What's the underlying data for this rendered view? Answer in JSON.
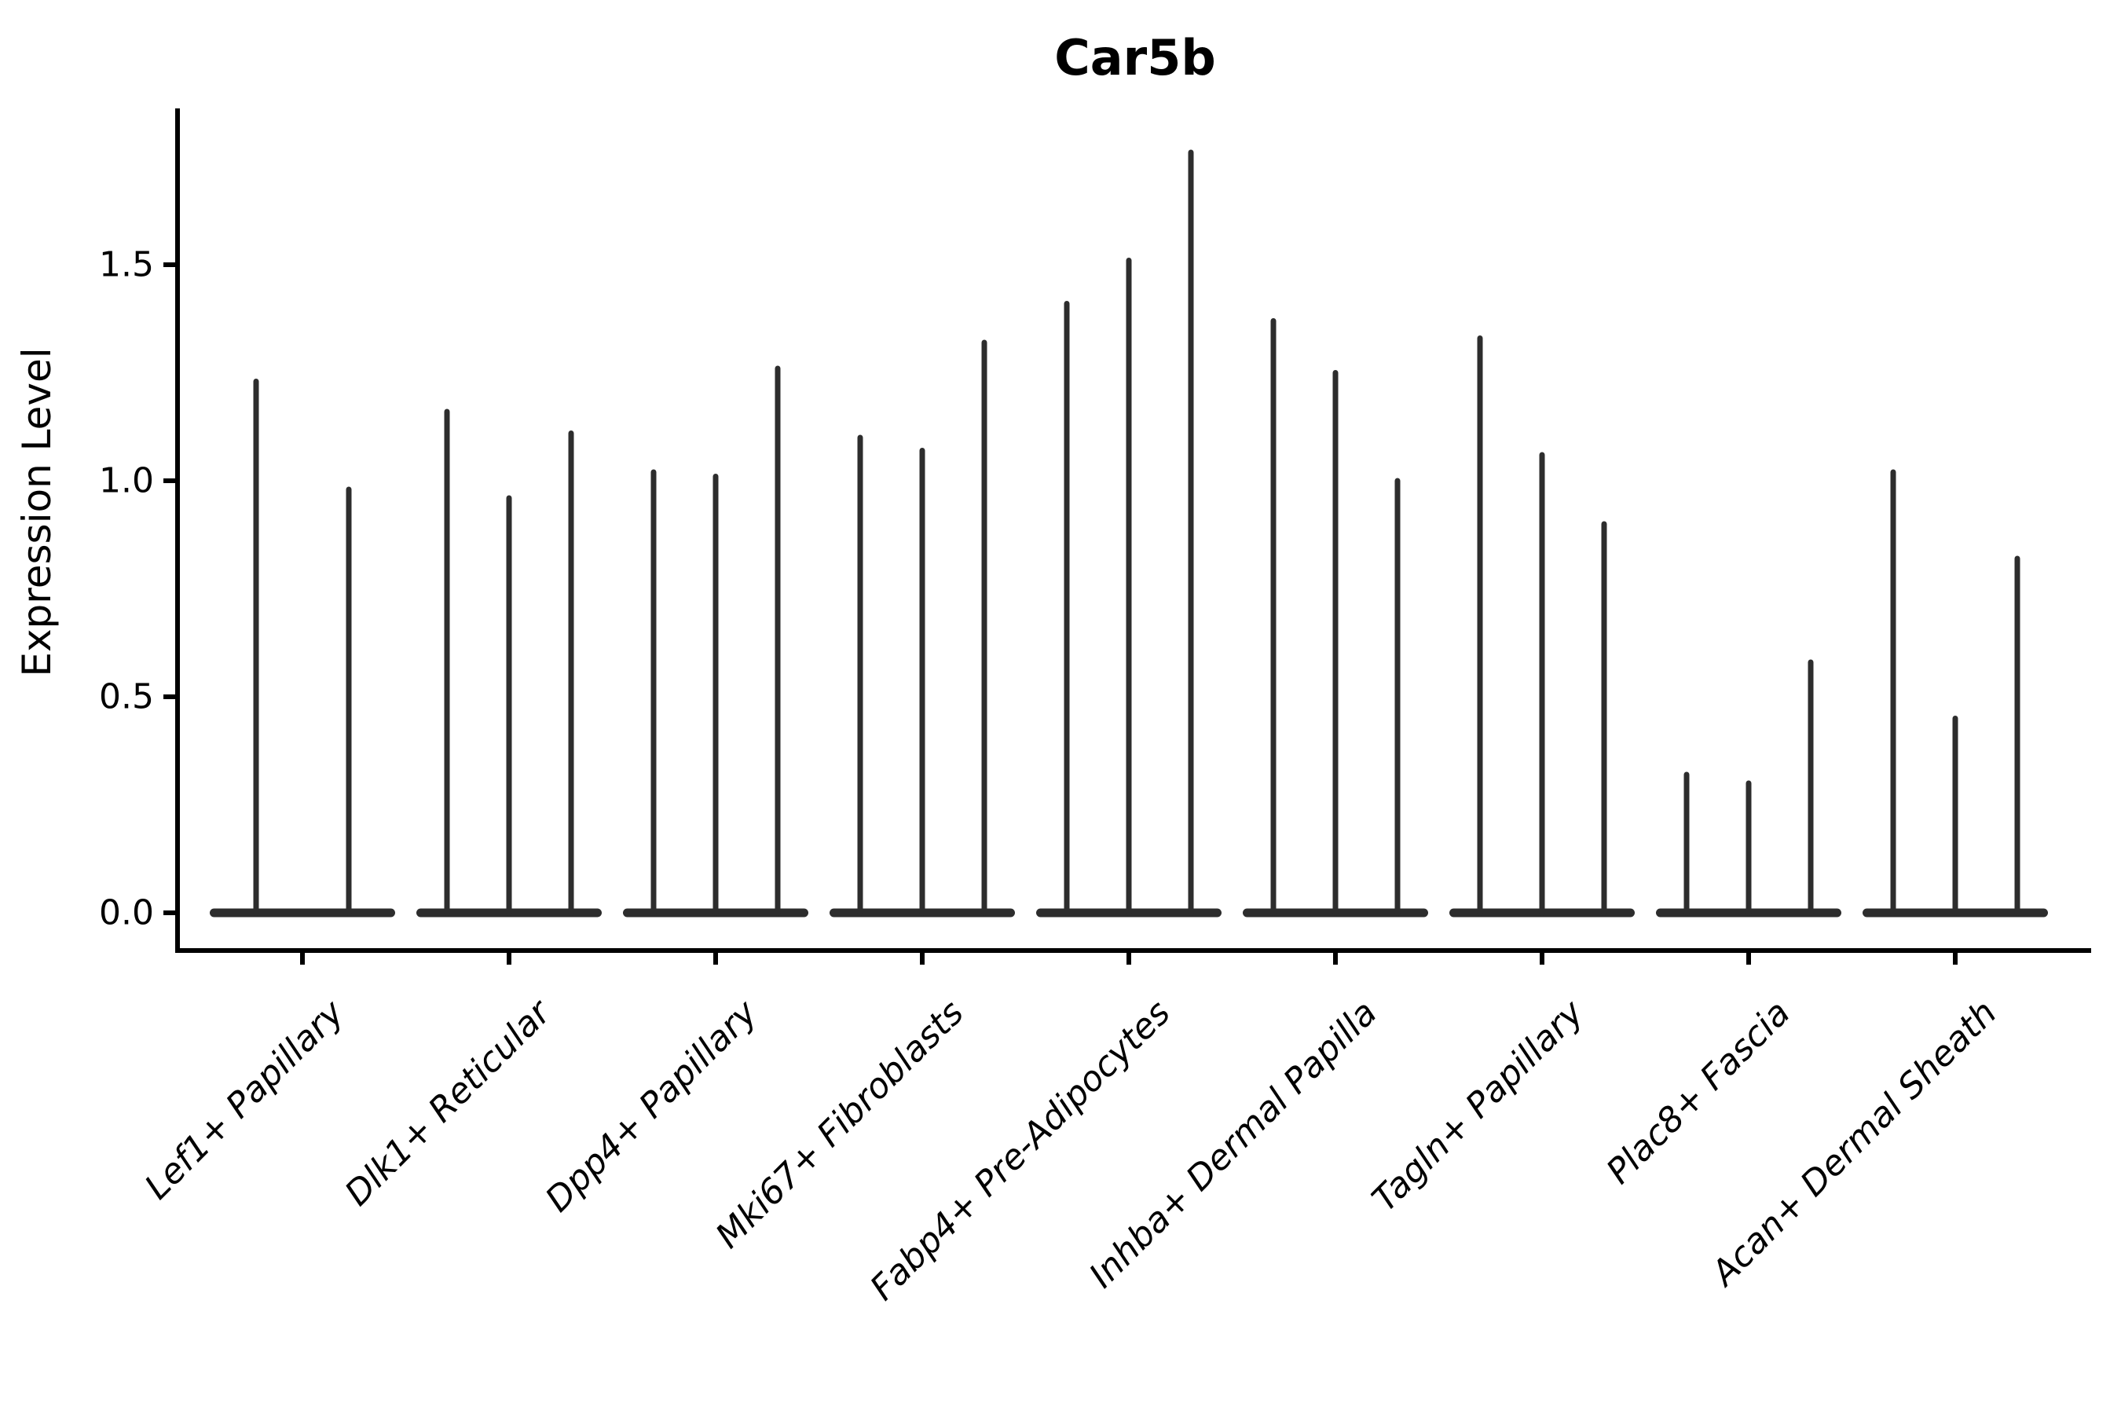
{
  "chart_data": {
    "type": "violin",
    "title": "Car5b",
    "ylabel": "Expression Level",
    "xlabel": "",
    "ytick_labels": [
      "0.0",
      "0.5",
      "1.0",
      "1.5"
    ],
    "ytick_values": [
      0.0,
      0.5,
      1.0,
      1.5
    ],
    "ylim": [
      0.0,
      1.86
    ],
    "grid": false,
    "legend": "none",
    "violin_color": "#2d2d2d",
    "axis_color": "#000000",
    "background_color": "#ffffff",
    "x_label_rotation_deg": 45,
    "description": "Each category shows a flat violin baseline at expression 0 with 2-3 thin needle violins whose tips mark the maximum expression level",
    "categories": [
      "Lef1+ Papillary",
      "Dlk1+ Reticular",
      "Dpp4+ Papillary",
      "Mki67+ Fibroblasts",
      "Fabp4+ Pre-Adipocytes",
      "Inhba+ Dermal Papilla",
      "Tagln+ Papillary",
      "Plac8+ Fascia",
      "Acan+ Dermal Sheath"
    ],
    "violins": [
      {
        "label": "Lef1+ Papillary",
        "spikes": [
          {
            "dx": -59,
            "peak": 1.23
          },
          {
            "dx": 59,
            "peak": 0.98
          }
        ]
      },
      {
        "label": "Dlk1+ Reticular",
        "spikes": [
          {
            "dx": -79,
            "peak": 1.16
          },
          {
            "dx": 0,
            "peak": 0.96
          },
          {
            "dx": 79,
            "peak": 1.11
          }
        ]
      },
      {
        "label": "Dpp4+ Papillary",
        "spikes": [
          {
            "dx": -79,
            "peak": 1.02
          },
          {
            "dx": 0,
            "peak": 1.01
          },
          {
            "dx": 79,
            "peak": 1.26
          }
        ]
      },
      {
        "label": "Mki67+ Fibroblasts",
        "spikes": [
          {
            "dx": -79,
            "peak": 1.1
          },
          {
            "dx": 0,
            "peak": 1.07
          },
          {
            "dx": 79,
            "peak": 1.32
          }
        ]
      },
      {
        "label": "Fabp4+ Pre-Adipocytes",
        "spikes": [
          {
            "dx": -79,
            "peak": 1.41
          },
          {
            "dx": 0,
            "peak": 1.51
          },
          {
            "dx": 79,
            "peak": 1.76
          }
        ]
      },
      {
        "label": "Inhba+ Dermal Papilla",
        "spikes": [
          {
            "dx": -79,
            "peak": 1.37
          },
          {
            "dx": 0,
            "peak": 1.25
          },
          {
            "dx": 79,
            "peak": 1.0
          }
        ]
      },
      {
        "label": "Tagln+ Papillary",
        "spikes": [
          {
            "dx": -79,
            "peak": 1.33
          },
          {
            "dx": 0,
            "peak": 1.06
          },
          {
            "dx": 79,
            "peak": 0.9
          }
        ]
      },
      {
        "label": "Plac8+ Fascia",
        "spikes": [
          {
            "dx": -79,
            "peak": 0.32
          },
          {
            "dx": 0,
            "peak": 0.3
          },
          {
            "dx": 79,
            "peak": 0.58
          }
        ]
      },
      {
        "label": "Acan+ Dermal Sheath",
        "spikes": [
          {
            "dx": -79,
            "peak": 1.02
          },
          {
            "dx": 0,
            "peak": 0.45
          },
          {
            "dx": 79,
            "peak": 0.82
          }
        ]
      }
    ]
  }
}
